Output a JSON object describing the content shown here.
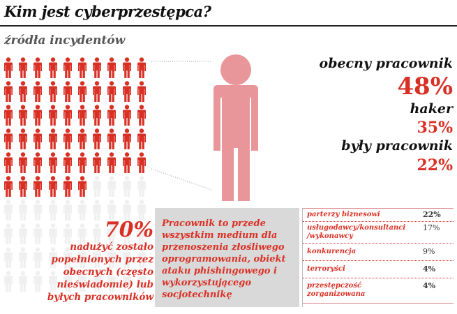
{
  "title": "Kim jest cyberprzestępca?",
  "subtitle": "źródła incydentów",
  "pictogram": {
    "total": 100,
    "highlighted": 56,
    "color_on": "#d93025",
    "color_off": "#efefef"
  },
  "big_figure_color": "#e8969a",
  "stats": [
    {
      "label": "obecny pracownik",
      "value": "48%"
    },
    {
      "label": "haker",
      "value": "35%"
    },
    {
      "label": "były pracownik",
      "value": "22%"
    }
  ],
  "highlight": {
    "value": "70%",
    "text_lines": [
      "nadużyć zostało",
      "popełnionych przez",
      "obecnych (często",
      "nieświadomie) lub",
      "byłych pracowników"
    ]
  },
  "note": "Pracownik to przede wszystkim medium dla przenoszenia złośliwego oprogramowania, obiekt ataku phishingowego i wykorzystującego socjotechnikę",
  "table": [
    {
      "name": "parterzy biznesowi",
      "value": "22%"
    },
    {
      "name": "usługodawcy/konsultanci /wykonawcy",
      "value": "17%"
    },
    {
      "name": "konkurencja",
      "value": "9%"
    },
    {
      "name": "terroryści",
      "value": "4%"
    },
    {
      "name": "przestępczość zorganizowana",
      "value": "4%"
    }
  ]
}
